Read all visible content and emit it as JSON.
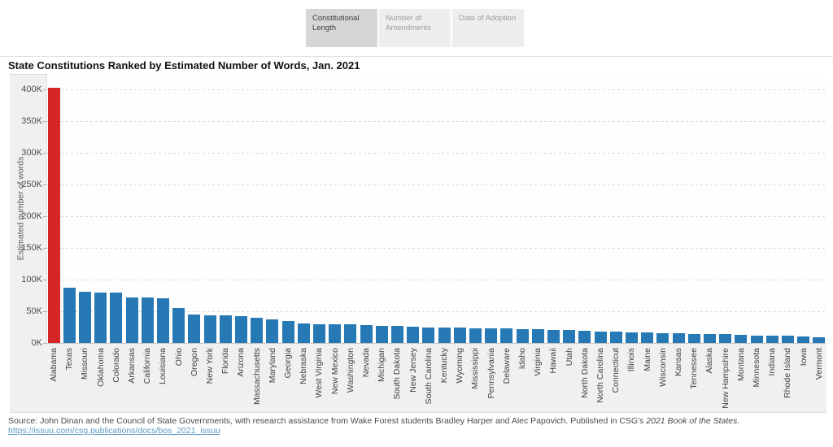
{
  "tabs": [
    {
      "label": "Constitutional Length",
      "active": true
    },
    {
      "label": "Number of Amendments",
      "active": false
    },
    {
      "label": "Date of Adoption",
      "active": false
    }
  ],
  "title": "State Constitutions Ranked by Estimated Number of Words, Jan. 2021",
  "chart_data": {
    "type": "bar",
    "title": "State Constitutions Ranked by Estimated Number of Words, Jan. 2021",
    "xlabel": "",
    "ylabel": "Estimated number of words",
    "ylim": [
      0,
      400000
    ],
    "ytick_labels": [
      "0K",
      "50K",
      "100K",
      "150K",
      "200K",
      "250K",
      "300K",
      "350K",
      "400K"
    ],
    "ytick_values": [
      0,
      50000,
      100000,
      150000,
      200000,
      250000,
      300000,
      350000,
      400000
    ],
    "grid": "horizontal-dashed",
    "legend": "none",
    "bar_color": "#2779b5",
    "highlight_category": "Alabama",
    "highlight_color": "#d62728",
    "categories": [
      "Alabama",
      "Texas",
      "Missouri",
      "Oklahoma",
      "Colorado",
      "Arkansas",
      "California",
      "Louisiana",
      "Ohio",
      "Oregon",
      "New York",
      "Florida",
      "Arizona",
      "Massachusetts",
      "Maryland",
      "Georgia",
      "Nebraska",
      "West Virginia",
      "New Mexico",
      "Washington",
      "Nevada",
      "Michigan",
      "South Dakota",
      "New Jersey",
      "South Carolina",
      "Kentucky",
      "Wyoming",
      "Mississippi",
      "Pennsylvania",
      "Delaware",
      "Idaho",
      "Virginia",
      "Hawaii",
      "Utah",
      "North Dakota",
      "North Carolina",
      "Connecticut",
      "Illinois",
      "Maine",
      "Wisconsin",
      "Kansas",
      "Tennessee",
      "Alaska",
      "New Hampshire",
      "Montana",
      "Minnesota",
      "Indiana",
      "Rhode Island",
      "Iowa",
      "Vermont"
    ],
    "values": [
      403000,
      87000,
      81000,
      80000,
      79000,
      72000,
      71500,
      71000,
      55000,
      45000,
      44000,
      43000,
      42000,
      40000,
      37000,
      35000,
      31000,
      30000,
      29500,
      29000,
      28500,
      27500,
      26500,
      25500,
      25000,
      24500,
      24000,
      23500,
      23000,
      22500,
      22000,
      21500,
      21000,
      20000,
      19000,
      18000,
      17500,
      17000,
      16500,
      15500,
      15000,
      14500,
      14000,
      13500,
      13000,
      12000,
      11500,
      11000,
      10500,
      8500
    ]
  },
  "source": {
    "prefix": "Source: John Dinan and the Council of State Governments, with research assistance from Wake Forest students Bradley Harper and Alec Papovich. Published in CSG's ",
    "italic": "2021 Book of the States.",
    "link_text": "https://issuu.com/csg.publications/docs/bos_2021_issuu"
  }
}
